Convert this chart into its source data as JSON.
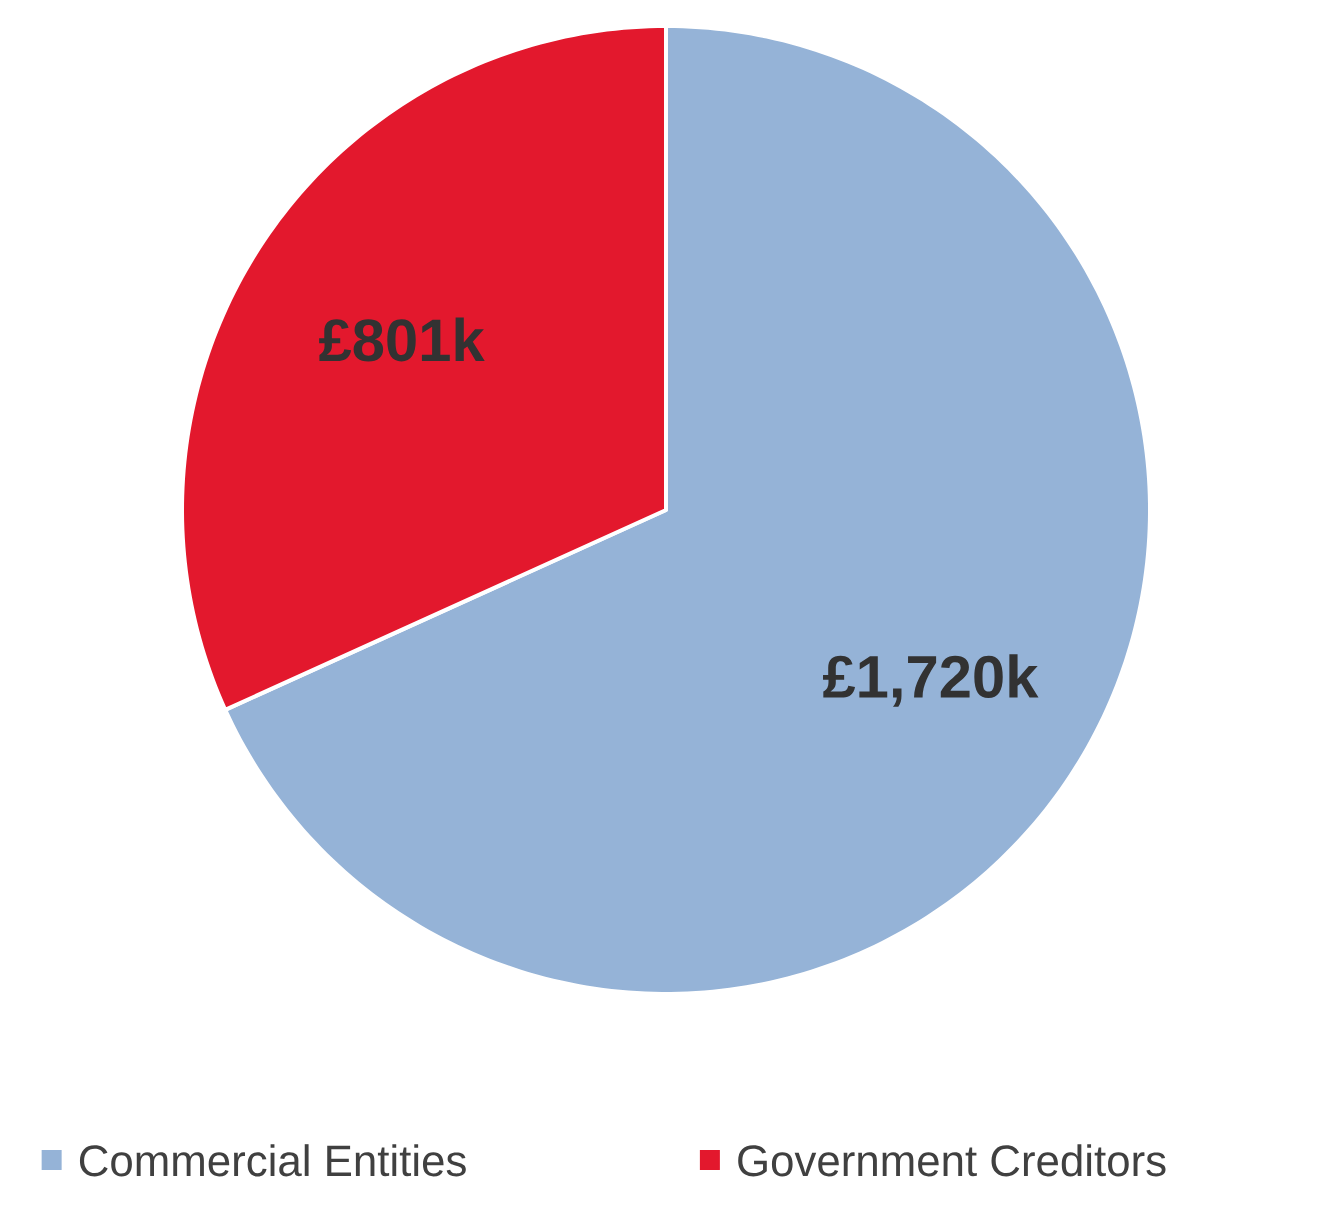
{
  "chart_data": {
    "type": "pie",
    "categories": [
      "Commercial Entities",
      "Government Creditors"
    ],
    "values": [
      1720,
      801
    ],
    "colors": [
      "#95b3d7",
      "#e3182d"
    ],
    "value_labels": [
      "£1,720k",
      "£801k"
    ],
    "legend": "bottom"
  }
}
